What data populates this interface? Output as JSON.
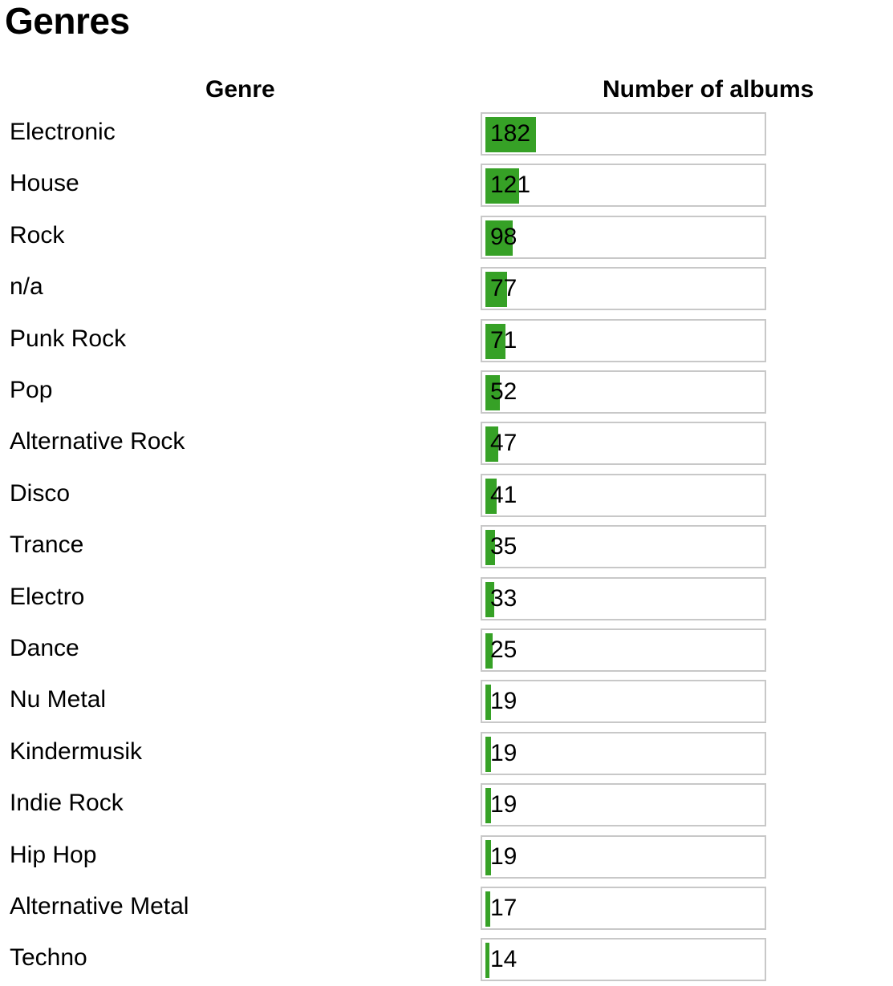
{
  "page": {
    "title": "Genres"
  },
  "table": {
    "genre_header": "Genre",
    "albums_header": "Number of albums"
  },
  "colors": {
    "bar_fill": "#36a126",
    "bar_border": "#c8c8c8"
  },
  "chart_data": {
    "type": "bar",
    "orientation": "horizontal",
    "title": "Genres",
    "xlabel": "Number of albums",
    "ylabel": "Genre",
    "xlim": [
      0,
      1000
    ],
    "categories": [
      "Electronic",
      "House",
      "Rock",
      "n/a",
      "Punk Rock",
      "Pop",
      "Alternative Rock",
      "Disco",
      "Trance",
      "Electro",
      "Dance",
      "Nu Metal",
      "Kindermusik",
      "Indie Rock",
      "Hip Hop",
      "Alternative Metal",
      "Techno"
    ],
    "values": [
      182,
      121,
      98,
      77,
      71,
      52,
      47,
      41,
      35,
      33,
      25,
      19,
      19,
      19,
      19,
      17,
      14
    ]
  }
}
